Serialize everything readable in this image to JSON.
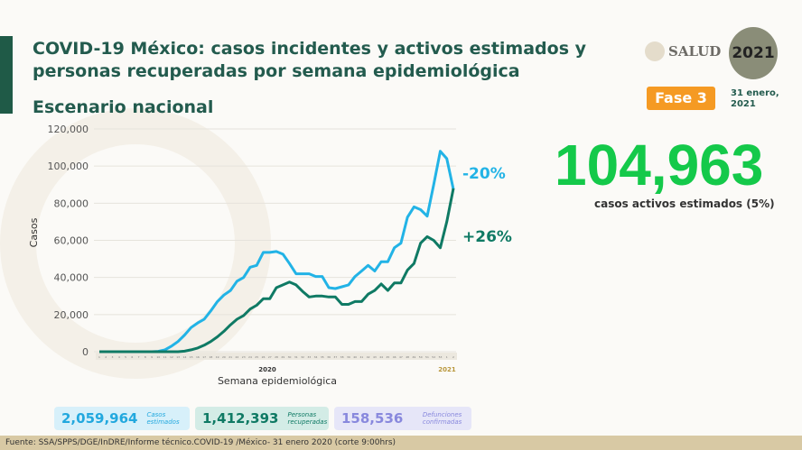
{
  "header": {
    "title": "COVID-19 México: casos incidentes y activos estimados y personas recuperadas por semana epidemiológica",
    "subtitle": "Escenario nacional",
    "logo_text": "SALUD",
    "logo2_text": "2021",
    "phase": "Fase 3",
    "date": "31 enero, 2021"
  },
  "highlight": {
    "value": "104,963",
    "label": "casos activos estimados (5%)"
  },
  "stats": [
    {
      "value": "2,059,964",
      "label": "Casos estimados"
    },
    {
      "value": "1,412,393",
      "label": "Personas recuperadas"
    },
    {
      "value": "158,536",
      "label": "Defunciones confirmadas"
    }
  ],
  "footer": "Fuente: SSA/SPPS/DGE/InDRE/Informe técnico.COVID-19 /México- 31 enero 2020 (corte 9:00hrs)",
  "colors": {
    "cyan": "#22b3e6",
    "green": "#0f7a64"
  },
  "chart_data": {
    "type": "line",
    "xlabel": "Semana epidemiológica",
    "ylabel": "Casos",
    "ylim": [
      0,
      120000
    ],
    "yticks": [
      "0",
      "20,000",
      "40,000",
      "60,000",
      "80,000",
      "100,000",
      "120,000"
    ],
    "year_labels": [
      "2020",
      "2021"
    ],
    "x": [
      "1",
      "2",
      "3",
      "4",
      "5",
      "6",
      "7",
      "8",
      "9",
      "10",
      "11",
      "12",
      "13",
      "14",
      "15",
      "16",
      "17",
      "18",
      "19",
      "20",
      "21",
      "22",
      "23",
      "24",
      "25",
      "26",
      "27",
      "28",
      "29",
      "30",
      "31",
      "32",
      "33",
      "34",
      "35",
      "36",
      "37",
      "38",
      "39",
      "40",
      "41",
      "42",
      "43",
      "44",
      "45",
      "46",
      "47",
      "48",
      "49",
      "50",
      "51",
      "52",
      "53",
      "1",
      "2"
    ],
    "series": [
      {
        "name": "Casos incidentes estimados",
        "change": "-20%",
        "values": [
          0,
          0,
          0,
          0,
          0,
          0,
          0,
          0,
          0,
          200,
          1000,
          3000,
          5500,
          9000,
          13000,
          15500,
          17500,
          22000,
          27000,
          30500,
          33000,
          38000,
          40000,
          45500,
          46500,
          53500,
          53500,
          54000,
          52500,
          47500,
          42000,
          42000,
          42000,
          40500,
          40500,
          34500,
          34000,
          35000,
          36000,
          40500,
          43500,
          46500,
          43500,
          48500,
          48500,
          56000,
          58500,
          72500,
          78000,
          76500,
          73000,
          90000,
          108000,
          104000,
          87500
        ]
      },
      {
        "name": "Personas recuperadas",
        "change": "+26%",
        "values": [
          0,
          0,
          0,
          0,
          0,
          0,
          0,
          0,
          0,
          0,
          0,
          0,
          0,
          300,
          1000,
          2000,
          3500,
          5500,
          8000,
          11000,
          14500,
          17500,
          19500,
          23000,
          25000,
          28500,
          28500,
          34500,
          36000,
          37500,
          36000,
          32500,
          29500,
          30000,
          30000,
          29500,
          29500,
          25500,
          25500,
          27000,
          27000,
          31000,
          33000,
          36500,
          33000,
          37000,
          37000,
          44000,
          47500,
          58500,
          62000,
          60000,
          56000,
          70000,
          88000
        ]
      }
    ]
  }
}
